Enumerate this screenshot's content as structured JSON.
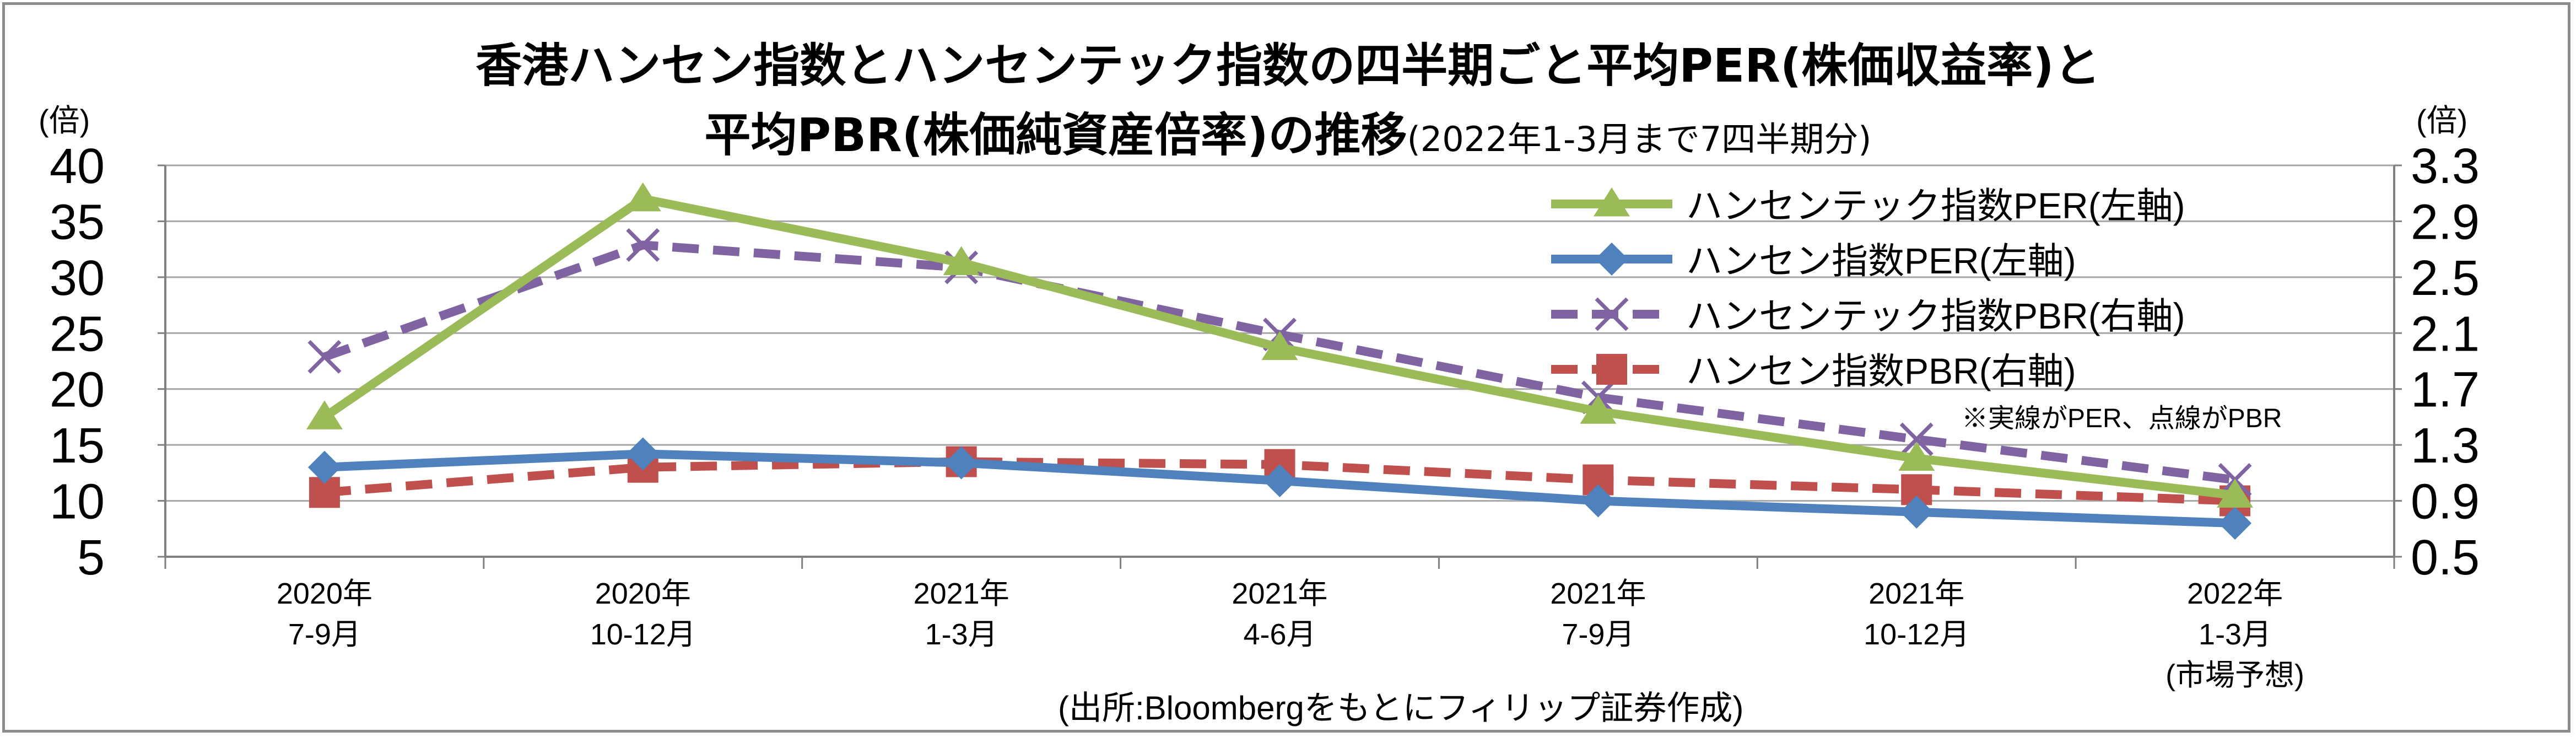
{
  "chart_data": {
    "type": "line",
    "title_line1": "香港ハンセン指数とハンセンテック指数の四半期ごと平均PER(株価収益率)と",
    "title_line2": "平均PBR(株価純資産倍率)の推移",
    "title_note": "(2022年1-3月まで7四半期分)",
    "left_axis": {
      "unit": "(倍)",
      "min": 5,
      "max": 40,
      "ticks": [
        "40",
        "35",
        "30",
        "25",
        "20",
        "15",
        "10",
        "5"
      ]
    },
    "right_axis": {
      "unit": "(倍)",
      "min": 0.5,
      "max": 3.3,
      "ticks": [
        "3.3",
        "2.9",
        "2.5",
        "2.1",
        "1.7",
        "1.3",
        "0.9",
        "0.5"
      ]
    },
    "categories": [
      [
        "2020年",
        "7-9月"
      ],
      [
        "2020年",
        "10-12月"
      ],
      [
        "2021年",
        "1-3月"
      ],
      [
        "2021年",
        "4-6月"
      ],
      [
        "2021年",
        "7-9月"
      ],
      [
        "2021年",
        "10-12月"
      ],
      [
        "2022年",
        "1-3月",
        "(市場予想)"
      ]
    ],
    "series": [
      {
        "name": "ハンセンテック指数PER(左軸)",
        "axis": "left",
        "style": "solid",
        "marker": "triangle",
        "color": "#9BBB59",
        "values": [
          17.5,
          37.0,
          31.3,
          23.7,
          18.0,
          13.8,
          10.5
        ]
      },
      {
        "name": "ハンセン指数PER(左軸)",
        "axis": "left",
        "style": "solid",
        "marker": "diamond",
        "color": "#4F81BD",
        "values": [
          13.0,
          14.2,
          13.4,
          11.8,
          10.0,
          9.0,
          8.0
        ]
      },
      {
        "name": "ハンセンテック指数PBR(右軸)",
        "axis": "right",
        "style": "dashed",
        "marker": "x",
        "color": "#8064A2",
        "values": [
          1.93,
          2.73,
          2.57,
          2.09,
          1.64,
          1.34,
          1.05
        ]
      },
      {
        "name": "ハンセン指数PBR(右軸)",
        "axis": "right",
        "style": "dashed",
        "marker": "square",
        "color": "#C0504D",
        "values": [
          0.96,
          1.14,
          1.18,
          1.16,
          1.05,
          0.98,
          0.9
        ]
      }
    ],
    "annotation": "※実線がPER、点線がPBR",
    "source": "(出所:Bloombergをもとにフィリップ証券作成)",
    "legend_position": "top-right",
    "grid": true
  }
}
